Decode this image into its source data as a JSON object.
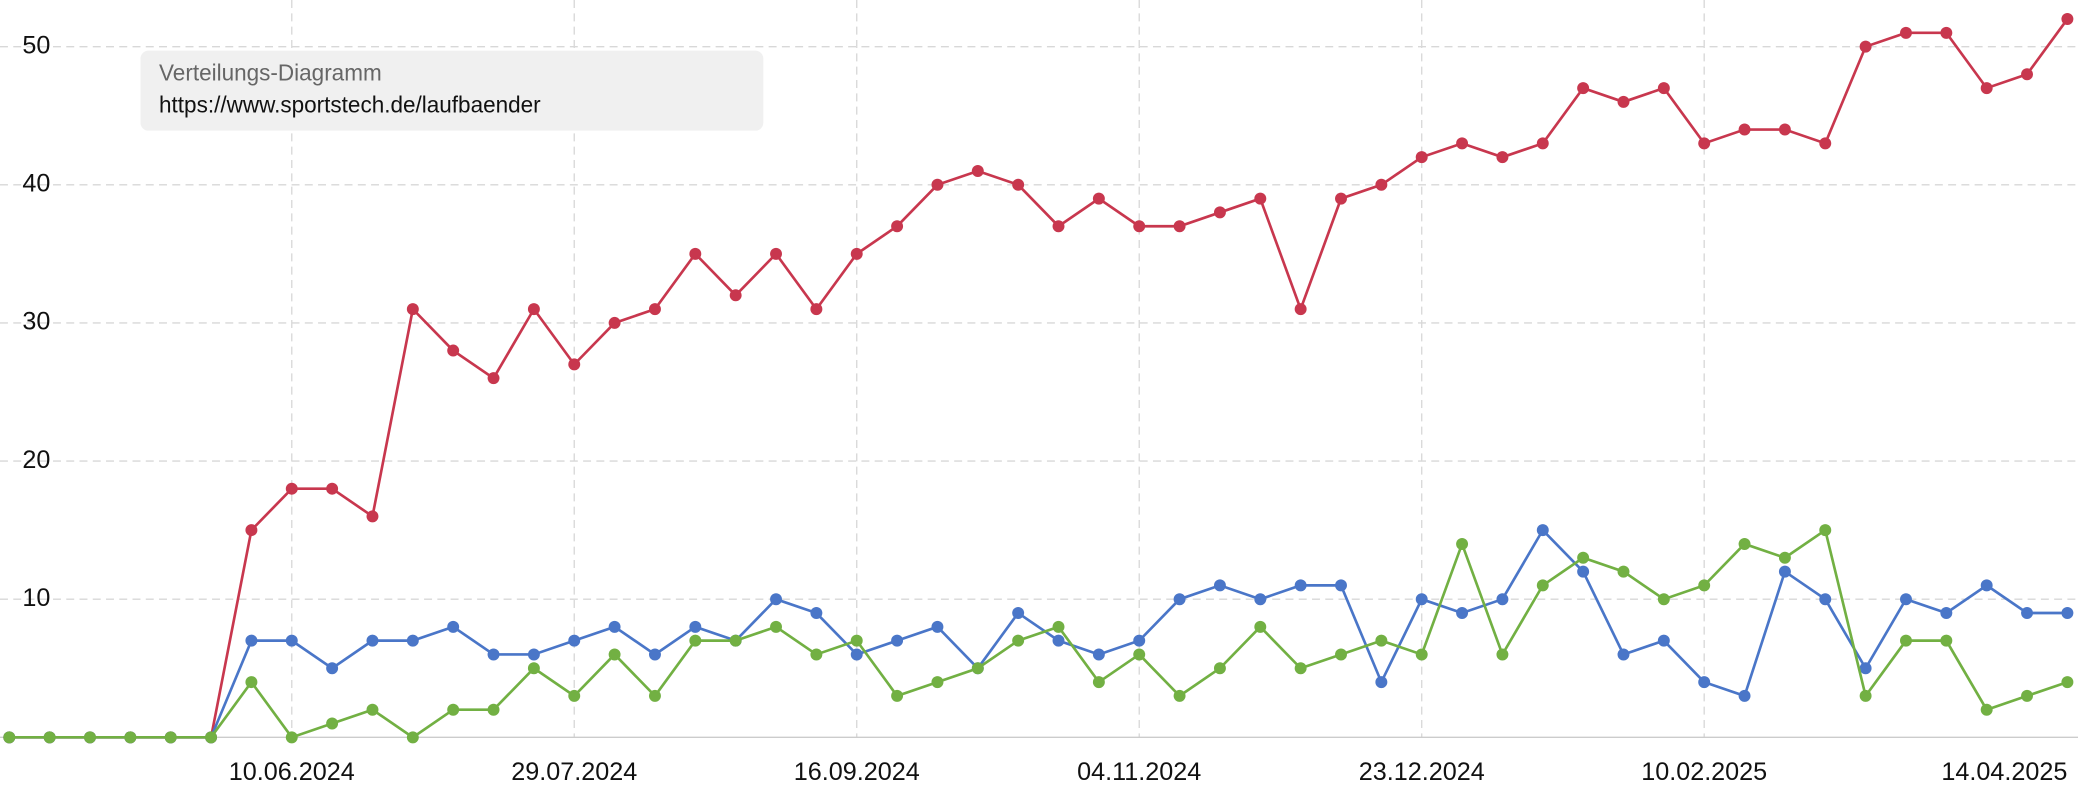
{
  "chart_data": {
    "type": "line",
    "annotation": {
      "title": "Verteilungs-Diagramm",
      "url": "https://www.sportstech.de/laufbaender"
    },
    "categories": [
      null,
      null,
      null,
      null,
      null,
      null,
      null,
      "10.06.2024",
      null,
      null,
      null,
      null,
      null,
      null,
      "29.07.2024",
      null,
      null,
      null,
      null,
      null,
      null,
      "16.09.2024",
      null,
      null,
      null,
      null,
      null,
      null,
      "04.11.2024",
      null,
      null,
      null,
      null,
      null,
      null,
      "23.12.2024",
      null,
      null,
      null,
      null,
      null,
      null,
      "10.02.2025",
      null,
      null,
      null,
      null,
      null,
      null,
      null,
      null,
      "14.04.2025"
    ],
    "series": [
      {
        "color": "#c8374e",
        "values": [
          0,
          0,
          0,
          0,
          0,
          0,
          15,
          18,
          18,
          16,
          31,
          28,
          26,
          31,
          27,
          30,
          31,
          35,
          32,
          35,
          31,
          35,
          37,
          40,
          41,
          40,
          37,
          39,
          37,
          37,
          38,
          39,
          31,
          39,
          40,
          42,
          43,
          42,
          43,
          47,
          46,
          47,
          43,
          44,
          44,
          43,
          50,
          51,
          51,
          47,
          48,
          52
        ]
      },
      {
        "color": "#4a76c8",
        "values": [
          0,
          0,
          0,
          0,
          0,
          0,
          7,
          7,
          5,
          7,
          7,
          8,
          6,
          6,
          7,
          8,
          6,
          8,
          7,
          10,
          9,
          6,
          7,
          8,
          5,
          9,
          7,
          6,
          7,
          10,
          11,
          10,
          11,
          11,
          4,
          10,
          9,
          10,
          15,
          12,
          6,
          7,
          4,
          3,
          12,
          10,
          5,
          10,
          9,
          11,
          9,
          9
        ]
      },
      {
        "color": "#72b043",
        "values": [
          0,
          0,
          0,
          0,
          0,
          0,
          4,
          0,
          1,
          2,
          0,
          2,
          2,
          5,
          3,
          6,
          3,
          7,
          7,
          8,
          6,
          7,
          3,
          4,
          5,
          7,
          8,
          4,
          6,
          3,
          5,
          8,
          5,
          6,
          7,
          6,
          14,
          6,
          11,
          13,
          12,
          10,
          11,
          14,
          13,
          15,
          3,
          7,
          7,
          2,
          3,
          4
        ]
      }
    ],
    "ylim": [
      0,
      53
    ],
    "yticks": [
      10,
      20,
      30,
      40,
      50
    ],
    "grid": true
  }
}
